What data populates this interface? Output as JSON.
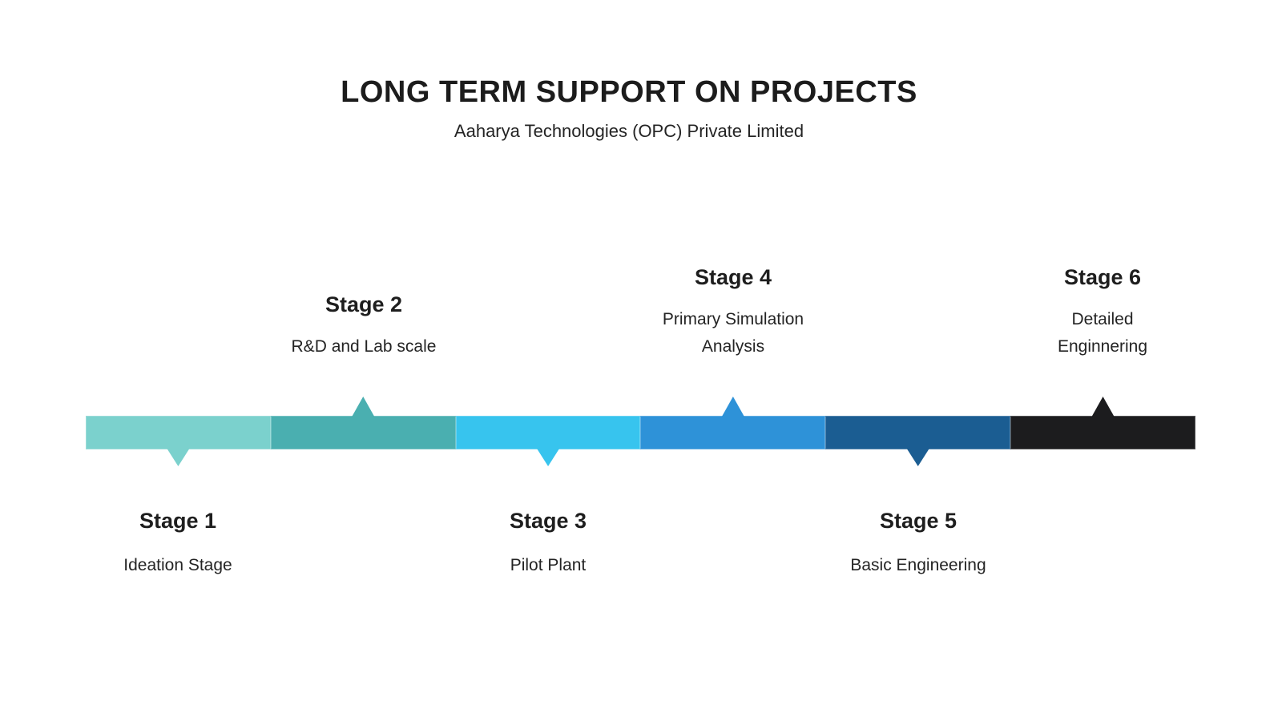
{
  "header": {
    "title": "LONG TERM SUPPORT ON PROJECTS",
    "subtitle": "Aaharya Technologies (OPC) Private Limited"
  },
  "timeline": {
    "stages": [
      {
        "name": "Stage 1",
        "description": "Ideation Stage",
        "description_lines": [
          "Ideation Stage"
        ],
        "color": "#7bd1cd",
        "label_position": "below"
      },
      {
        "name": "Stage 2",
        "description": "R&D and Lab scale",
        "description_lines": [
          "R&D and Lab scale"
        ],
        "color": "#4aafb0",
        "label_position": "above"
      },
      {
        "name": "Stage 3",
        "description": "Pilot Plant",
        "description_lines": [
          "Pilot Plant"
        ],
        "color": "#37c4ee",
        "label_position": "below"
      },
      {
        "name": "Stage 4",
        "description": "Primary Simulation Analysis",
        "description_lines": [
          "Primary Simulation",
          "Analysis"
        ],
        "color": "#2e92d8",
        "label_position": "above"
      },
      {
        "name": "Stage 5",
        "description": "Basic Engineering",
        "description_lines": [
          "Basic Engineering"
        ],
        "color": "#1b5d92",
        "label_position": "below"
      },
      {
        "name": "Stage 6",
        "description": "Detailed Enginnering",
        "description_lines": [
          "Detailed",
          "Enginnering"
        ],
        "color": "#1c1c1e",
        "label_position": "above"
      }
    ]
  },
  "colors": {
    "background": "#ffffff",
    "text": "#212121"
  }
}
